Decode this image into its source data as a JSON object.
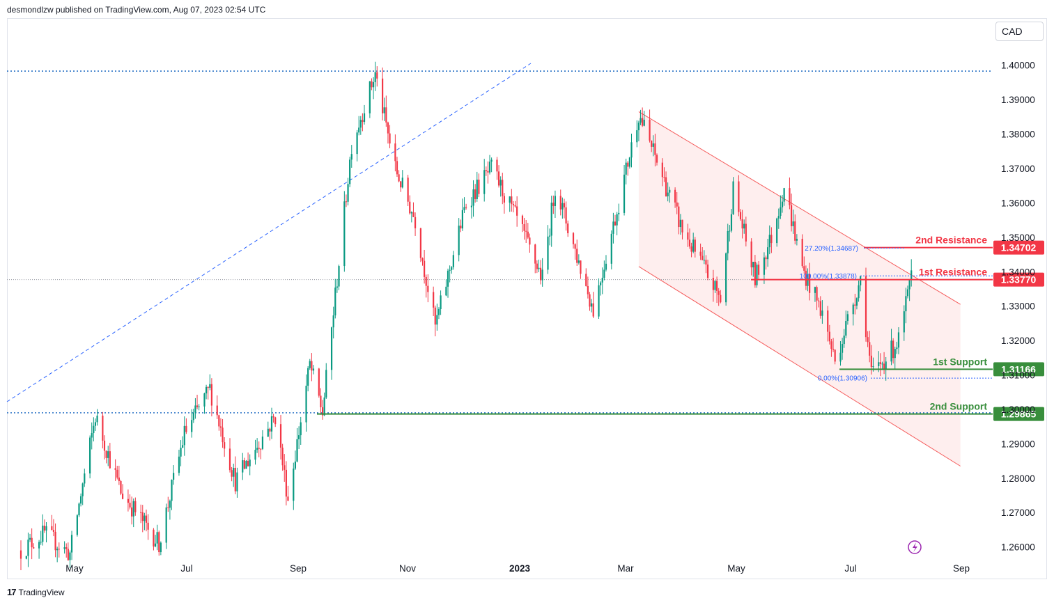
{
  "header": {
    "publisher_line": "desmondlzw published on TradingView.com, Aug 07, 2023 02:54 UTC"
  },
  "footer": {
    "brand": "TradingView"
  },
  "currency": "CAD",
  "colors": {
    "up": "#089981",
    "down": "#f23645",
    "resistance": "#f23645",
    "support": "#388e3c",
    "channel_fill": "#fde8e8",
    "channel_line": "#f55a5a",
    "dotted": "#2962ff"
  },
  "chart_data": {
    "type": "candlestick",
    "instrument_quote_currency": "CAD",
    "x_tick_labels": [
      "May",
      "Jul",
      "Sep",
      "Nov",
      "2023",
      "Mar",
      "May",
      "Jul",
      "Sep"
    ],
    "y_tick_labels": [
      "1.40000",
      "1.39000",
      "1.38000",
      "1.37000",
      "1.36000",
      "1.35000",
      "1.34000",
      "1.33000",
      "1.32000",
      "1.31000",
      "1.30000",
      "1.29000",
      "1.28000",
      "1.27000",
      "1.26000"
    ],
    "ylim": [
      1.2575,
      1.4135
    ],
    "levels": [
      {
        "label": "2nd Resistance",
        "value": "1.34702",
        "type": "resistance"
      },
      {
        "label": "1st Resistance",
        "value": "1.33770",
        "type": "resistance"
      },
      {
        "label": "1st Support",
        "value": "1.31166",
        "type": "support"
      },
      {
        "label": "2nd Support",
        "value": "1.29865",
        "type": "support"
      }
    ],
    "fibonacci": [
      {
        "label": "27.20%(1.34687)",
        "value": 1.34687
      },
      {
        "label": "100.00%(1.33878)",
        "value": 1.33878
      },
      {
        "label": "0.00%(1.30906)",
        "value": 1.30906
      }
    ],
    "horizontal_dotted": [
      1.3983,
      1.299
    ],
    "current_price": 1.3377,
    "channel": {
      "upper": [
        [
          "2023-03-07",
          1.3865
        ],
        [
          "2023-08-31",
          1.3305
        ]
      ],
      "lower": [
        [
          "2023-03-07",
          1.3415
        ],
        [
          "2023-08-31",
          1.2835
        ]
      ]
    },
    "series_waypoints": [
      [
        "2022-04-01",
        1.259
      ],
      [
        "2022-04-14",
        1.264
      ],
      [
        "2022-04-28",
        1.258
      ],
      [
        "2022-05-12",
        1.298
      ],
      [
        "2022-05-26",
        1.276
      ],
      [
        "2022-06-16",
        1.261
      ],
      [
        "2022-06-30",
        1.293
      ],
      [
        "2022-07-14",
        1.306
      ],
      [
        "2022-07-28",
        1.279
      ],
      [
        "2022-08-19",
        1.298
      ],
      [
        "2022-08-26",
        1.274
      ],
      [
        "2022-09-07",
        1.313
      ],
      [
        "2022-09-14",
        1.299
      ],
      [
        "2022-09-30",
        1.377
      ],
      [
        "2022-10-13",
        1.3975
      ],
      [
        "2022-10-24",
        1.37
      ],
      [
        "2022-11-04",
        1.355
      ],
      [
        "2022-11-15",
        1.324
      ],
      [
        "2022-12-02",
        1.36
      ],
      [
        "2022-12-16",
        1.37
      ],
      [
        "2022-12-30",
        1.355
      ],
      [
        "2023-01-13",
        1.338
      ],
      [
        "2023-01-20",
        1.365
      ],
      [
        "2023-02-10",
        1.329
      ],
      [
        "2023-02-24",
        1.36
      ],
      [
        "2023-03-07",
        1.386
      ],
      [
        "2023-03-17",
        1.372
      ],
      [
        "2023-03-31",
        1.352
      ],
      [
        "2023-04-12",
        1.341
      ],
      [
        "2023-04-21",
        1.332
      ],
      [
        "2023-04-28",
        1.364
      ],
      [
        "2023-05-10",
        1.338
      ],
      [
        "2023-05-19",
        1.35
      ],
      [
        "2023-05-26",
        1.365
      ],
      [
        "2023-06-05",
        1.341
      ],
      [
        "2023-06-16",
        1.328
      ],
      [
        "2023-06-23",
        1.314
      ],
      [
        "2023-07-07",
        1.338
      ],
      [
        "2023-07-13",
        1.31
      ],
      [
        "2023-07-24",
        1.317
      ],
      [
        "2023-07-28",
        1.32
      ],
      [
        "2023-08-04",
        1.338
      ]
    ]
  }
}
